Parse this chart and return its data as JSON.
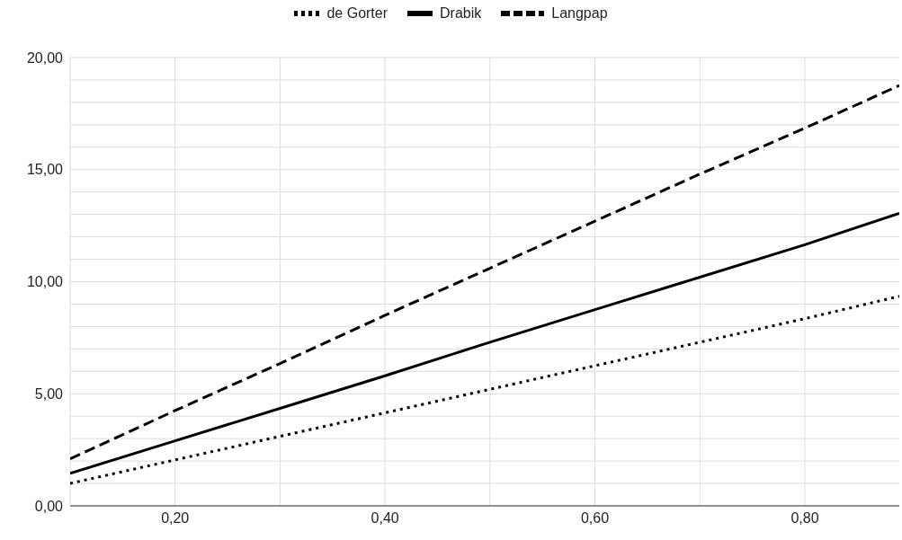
{
  "chart_data": {
    "type": "line",
    "x": [
      0.1,
      0.2,
      0.3,
      0.4,
      0.5,
      0.6,
      0.7,
      0.8,
      0.89
    ],
    "series": [
      {
        "name": "de Gorter",
        "color": "#000000",
        "line_style": "dotted",
        "values": [
          1.0,
          2.05,
          3.1,
          4.15,
          5.2,
          6.25,
          7.3,
          8.35,
          9.35
        ]
      },
      {
        "name": "Drabik",
        "color": "#000000",
        "line_style": "solid",
        "values": [
          1.45,
          2.9,
          4.35,
          5.8,
          7.3,
          8.75,
          10.2,
          11.65,
          13.05
        ]
      },
      {
        "name": "Langpap",
        "color": "#000000",
        "line_style": "dashed",
        "values": [
          2.1,
          4.25,
          6.35,
          8.5,
          10.6,
          12.7,
          14.8,
          16.85,
          18.75
        ]
      }
    ],
    "xlim": [
      0.1,
      0.89
    ],
    "xticks": [
      {
        "value": 0.1,
        "label": null
      },
      {
        "value": 0.2,
        "label": "0,20"
      },
      {
        "value": 0.3,
        "label": null
      },
      {
        "value": 0.4,
        "label": "0,40"
      },
      {
        "value": 0.5,
        "label": null
      },
      {
        "value": 0.6,
        "label": "0,60"
      },
      {
        "value": 0.7,
        "label": null
      },
      {
        "value": 0.8,
        "label": "0,80"
      }
    ],
    "ylim": [
      0,
      20
    ],
    "yticks": [
      {
        "value": 0,
        "label": "0,00"
      },
      {
        "value": 1,
        "label": null
      },
      {
        "value": 2,
        "label": null
      },
      {
        "value": 3,
        "label": null
      },
      {
        "value": 4,
        "label": null
      },
      {
        "value": 5,
        "label": "5,00"
      },
      {
        "value": 6,
        "label": null
      },
      {
        "value": 7,
        "label": null
      },
      {
        "value": 8,
        "label": null
      },
      {
        "value": 9,
        "label": null
      },
      {
        "value": 10,
        "label": "10,00"
      },
      {
        "value": 11,
        "label": null
      },
      {
        "value": 12,
        "label": null
      },
      {
        "value": 13,
        "label": null
      },
      {
        "value": 14,
        "label": null
      },
      {
        "value": 15,
        "label": "15,00"
      },
      {
        "value": 16,
        "label": null
      },
      {
        "value": 17,
        "label": null
      },
      {
        "value": 18,
        "label": null
      },
      {
        "value": 19,
        "label": null
      },
      {
        "value": 20,
        "label": "20,00"
      }
    ],
    "grid": true,
    "legend": "top",
    "marker": "none"
  }
}
